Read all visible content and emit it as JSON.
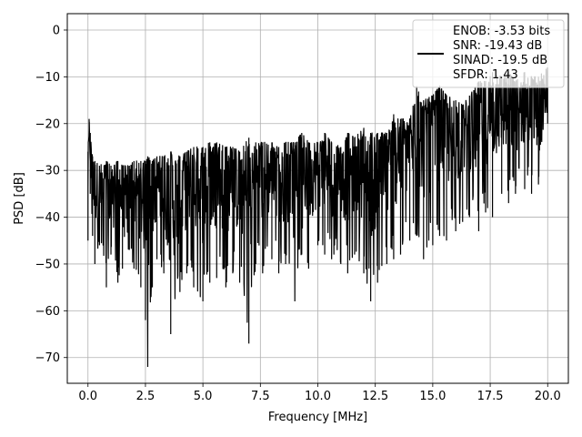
{
  "chart_data": {
    "type": "line",
    "title": "",
    "xlabel": "Frequency [MHz]",
    "ylabel": "PSD [dB]",
    "xlim": [
      -0.9,
      20.9
    ],
    "ylim": [
      -75.5,
      3.5
    ],
    "x_ticks": [
      0.0,
      2.5,
      5.0,
      7.5,
      10.0,
      12.5,
      15.0,
      17.5,
      20.0
    ],
    "x_tick_labels": [
      "0.0",
      "2.5",
      "5.0",
      "7.5",
      "10.0",
      "12.5",
      "15.0",
      "17.5",
      "20.0"
    ],
    "y_ticks": [
      0,
      -10,
      -20,
      -30,
      -40,
      -50,
      -60,
      -70
    ],
    "y_tick_labels": [
      "0",
      "−10",
      "−20",
      "−30",
      "−40",
      "−50",
      "−60",
      "−70"
    ],
    "grid": true,
    "legend_position": "top-right",
    "series": [
      {
        "name": "ENOB: -3.53 bits\nSNR: -19.43 dB\nSINAD: -19.5 dB\nSFDR: 1.43",
        "color": "#000000",
        "x": [
          0.0,
          0.05,
          0.1,
          0.2,
          0.3,
          0.5,
          0.8,
          1.0,
          1.3,
          1.5,
          1.8,
          2.0,
          2.3,
          2.5,
          2.6,
          2.8,
          3.0,
          3.3,
          3.6,
          4.0,
          4.3,
          4.6,
          5.0,
          5.3,
          5.6,
          6.0,
          6.3,
          6.6,
          7.0,
          7.3,
          7.6,
          8.0,
          8.3,
          8.6,
          9.0,
          9.3,
          9.6,
          10.0,
          10.3,
          10.6,
          11.0,
          11.3,
          11.6,
          12.0,
          12.3,
          12.6,
          13.0,
          13.3,
          13.6,
          14.0,
          14.3,
          14.6,
          15.0,
          15.3,
          15.6,
          16.0,
          16.3,
          16.6,
          17.0,
          17.3,
          17.6,
          18.0,
          18.3,
          18.6,
          19.0,
          19.3,
          19.6,
          20.0
        ],
        "upper": [
          -26,
          -19,
          -22,
          -27,
          -28,
          -29,
          -28,
          -29,
          -28,
          -29,
          -29,
          -28,
          -28,
          -28,
          -27,
          -28,
          -27,
          -27,
          -26,
          -27,
          -26,
          -25,
          -25,
          -24,
          -24,
          -25,
          -25,
          -26,
          -23,
          -24,
          -24,
          -24,
          -25,
          -24,
          -24,
          -22,
          -24,
          -24,
          -22,
          -24,
          -25,
          -22,
          -23,
          -21,
          -22,
          -22,
          -22,
          -18,
          -19,
          -19,
          -12,
          -15,
          -14,
          -12,
          -14,
          -15,
          -16,
          -14,
          -11,
          -11,
          -9,
          -10,
          -9,
          -11,
          -9,
          -10,
          -10,
          -8
        ],
        "lower": [
          -45,
          -22,
          -35,
          -44,
          -50,
          -46,
          -55,
          -48,
          -54,
          -51,
          -47,
          -51,
          -55,
          -62,
          -72,
          -55,
          -49,
          -52,
          -65,
          -56,
          -52,
          -55,
          -58,
          -54,
          -53,
          -55,
          -52,
          -54,
          -67,
          -50,
          -52,
          -49,
          -52,
          -50,
          -58,
          -48,
          -51,
          -46,
          -48,
          -49,
          -50,
          -52,
          -48,
          -52,
          -58,
          -54,
          -50,
          -49,
          -48,
          -45,
          -44,
          -49,
          -46,
          -44,
          -45,
          -43,
          -41,
          -40,
          -43,
          -39,
          -40,
          -35,
          -37,
          -35,
          -34,
          -35,
          -33,
          -20
        ]
      }
    ]
  }
}
